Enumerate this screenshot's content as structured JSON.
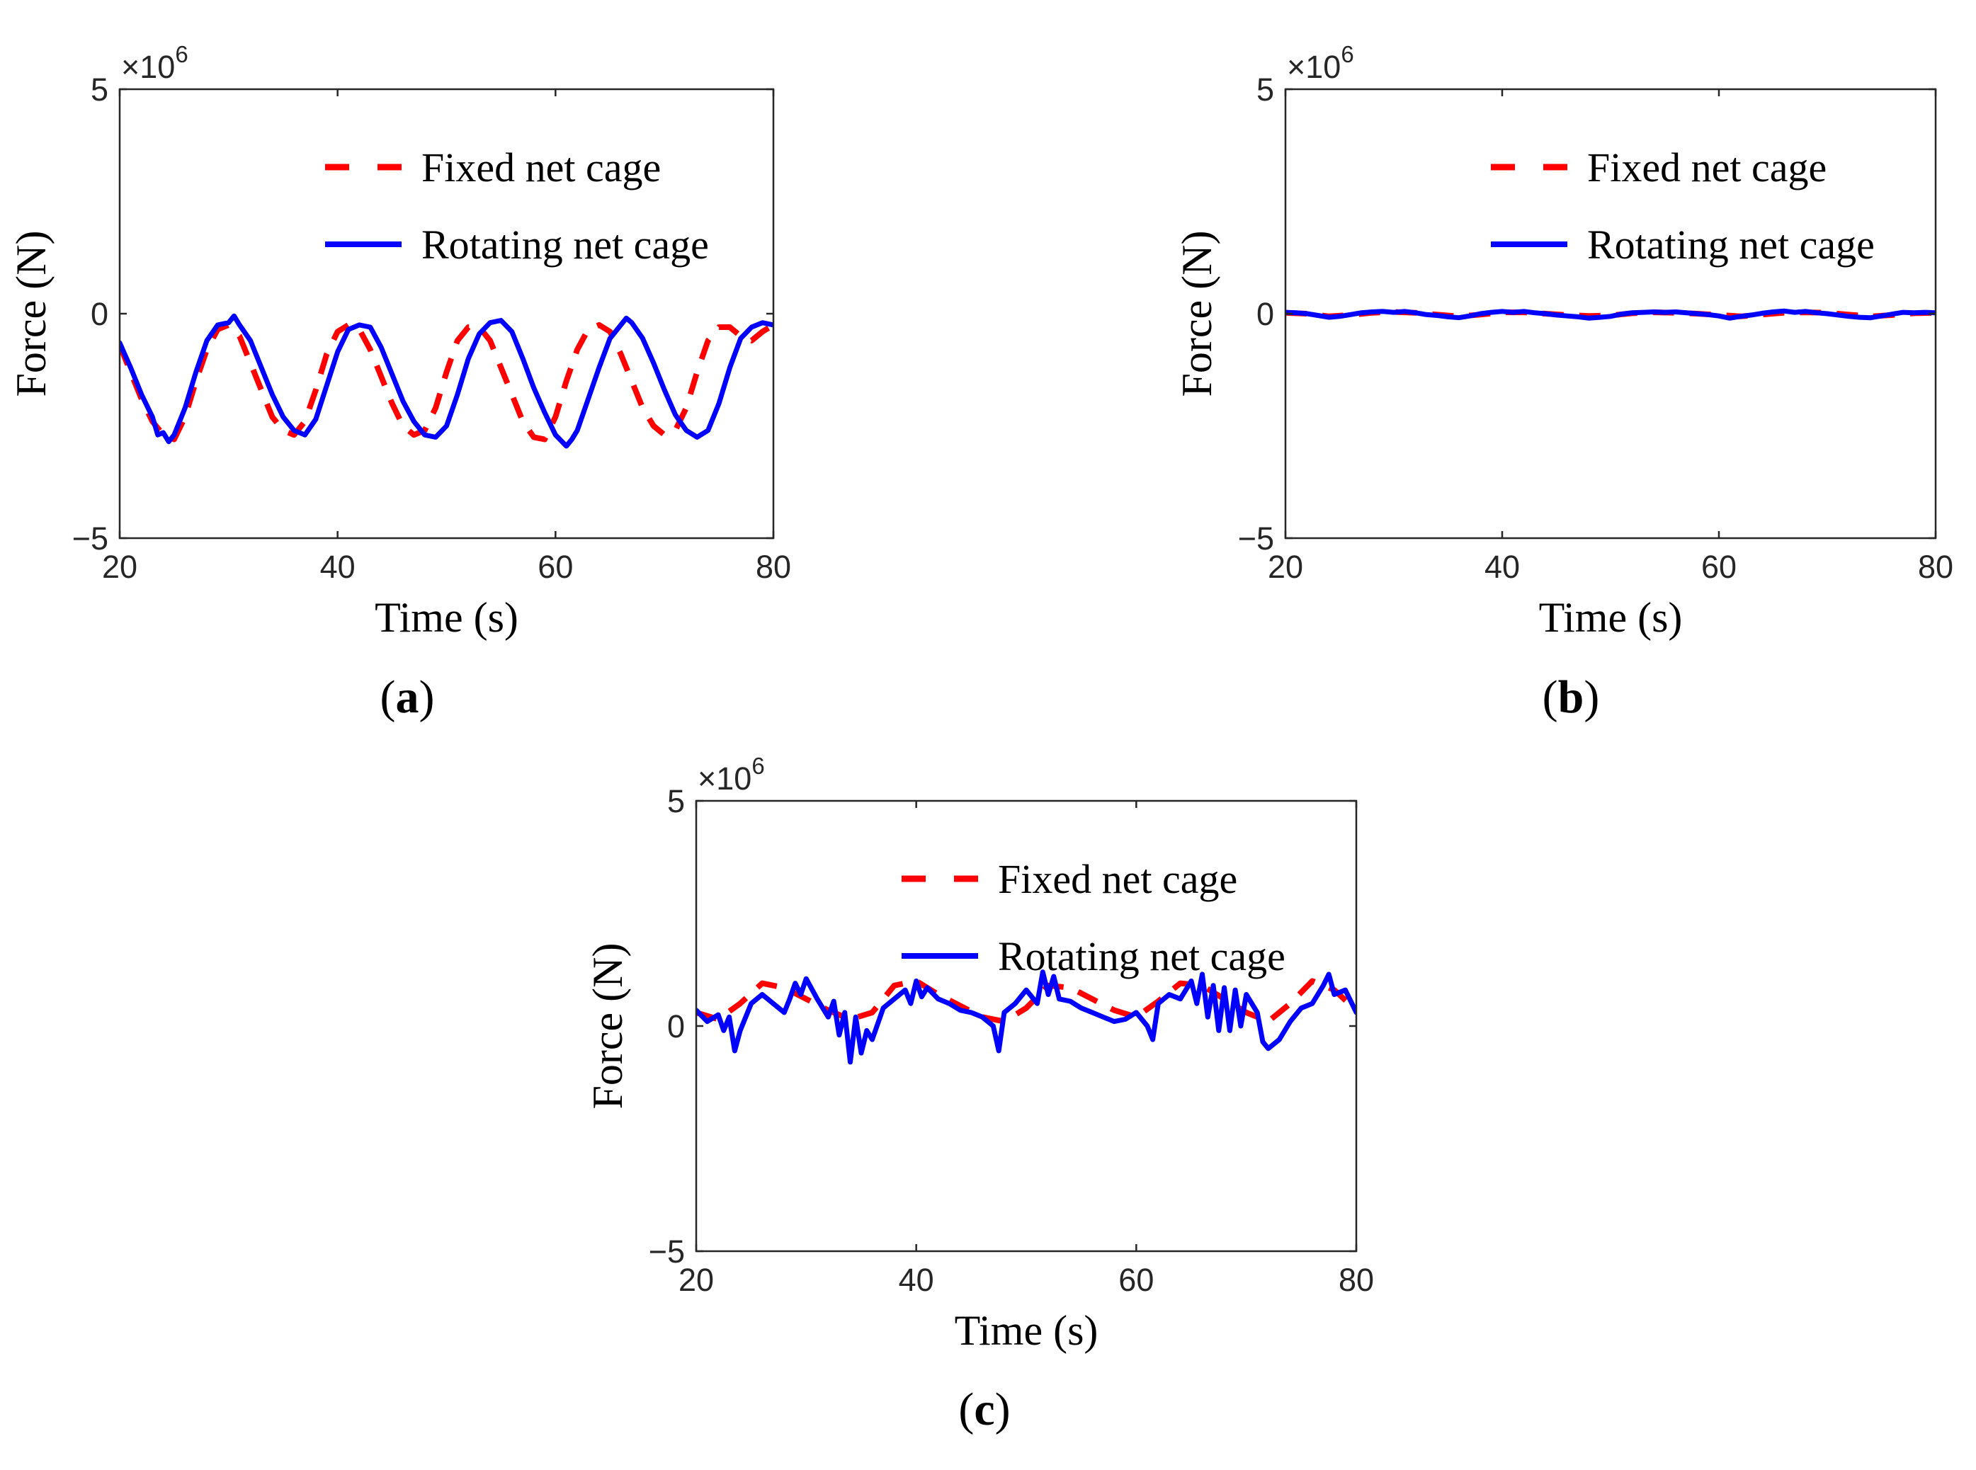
{
  "chart_data": [
    {
      "id": "a",
      "type": "line",
      "caption_letter": "a",
      "caption_left": "(",
      "caption_right": ")",
      "xlabel": "Time (s)",
      "ylabel": "Force (N)",
      "multiplier": "×10",
      "multiplier_exp": "6",
      "xlim": [
        20,
        80
      ],
      "ylim": [
        -5,
        5
      ],
      "xticks": [
        20,
        40,
        60,
        80
      ],
      "yticks": [
        -5,
        0,
        5
      ],
      "ytick_labels": [
        "−5",
        "0",
        "5"
      ],
      "grid": false,
      "legend_position": "top-right",
      "series": [
        {
          "name": "Fixed net cage",
          "color": "#ff0000",
          "style": "dashed",
          "x": [
            20,
            21,
            22,
            23,
            24,
            25,
            26,
            27,
            28,
            29,
            30,
            31,
            32,
            33,
            34,
            35,
            36,
            37,
            38,
            39,
            40,
            41,
            42,
            43,
            44,
            45,
            46,
            47,
            48,
            49,
            50,
            51,
            52,
            53,
            54,
            55,
            56,
            57,
            58,
            59,
            60,
            61,
            62,
            63,
            64,
            65,
            66,
            67,
            68,
            69,
            70,
            71,
            72,
            73,
            74,
            75,
            76,
            77,
            78,
            79,
            80
          ],
          "y": [
            -0.7,
            -1.3,
            -1.9,
            -2.4,
            -2.7,
            -2.8,
            -2.3,
            -1.5,
            -0.8,
            -0.35,
            -0.25,
            -0.5,
            -1.1,
            -1.7,
            -2.3,
            -2.6,
            -2.7,
            -2.4,
            -1.7,
            -0.9,
            -0.4,
            -0.25,
            -0.35,
            -0.8,
            -1.4,
            -2.0,
            -2.5,
            -2.7,
            -2.6,
            -2.1,
            -1.3,
            -0.6,
            -0.3,
            -0.3,
            -0.6,
            -1.2,
            -1.8,
            -2.4,
            -2.75,
            -2.8,
            -2.3,
            -1.5,
            -0.8,
            -0.35,
            -0.25,
            -0.4,
            -0.9,
            -1.5,
            -2.1,
            -2.5,
            -2.7,
            -2.6,
            -2.1,
            -1.3,
            -0.6,
            -0.3,
            -0.3,
            -0.5,
            -0.6,
            -0.4,
            -0.25
          ]
        },
        {
          "name": "Rotating net cage",
          "color": "#0000ff",
          "style": "solid",
          "x": [
            20,
            21,
            22,
            23,
            23.5,
            24,
            24.5,
            25,
            26,
            27,
            28,
            29,
            30,
            30.5,
            31,
            32,
            33,
            34,
            35,
            36,
            37,
            38,
            39,
            40,
            41,
            42,
            43,
            44,
            45,
            46,
            47,
            48,
            49,
            50,
            51,
            52,
            53,
            54,
            55,
            56,
            57,
            58,
            59,
            60,
            61,
            61.5,
            62,
            63,
            64,
            65,
            66,
            66.5,
            67,
            68,
            69,
            70,
            71,
            72,
            73,
            74,
            75,
            76,
            77,
            78,
            79,
            80
          ],
          "y": [
            -0.65,
            -1.2,
            -1.8,
            -2.3,
            -2.7,
            -2.65,
            -2.85,
            -2.7,
            -2.1,
            -1.3,
            -0.6,
            -0.25,
            -0.2,
            -0.05,
            -0.25,
            -0.6,
            -1.2,
            -1.8,
            -2.3,
            -2.6,
            -2.7,
            -2.35,
            -1.6,
            -0.85,
            -0.35,
            -0.25,
            -0.3,
            -0.75,
            -1.35,
            -1.95,
            -2.4,
            -2.7,
            -2.75,
            -2.5,
            -1.8,
            -1.0,
            -0.45,
            -0.2,
            -0.15,
            -0.4,
            -1.0,
            -1.65,
            -2.2,
            -2.7,
            -2.95,
            -2.8,
            -2.6,
            -1.9,
            -1.2,
            -0.55,
            -0.25,
            -0.1,
            -0.2,
            -0.55,
            -1.1,
            -1.7,
            -2.25,
            -2.6,
            -2.75,
            -2.6,
            -2.0,
            -1.2,
            -0.55,
            -0.3,
            -0.2,
            -0.25
          ]
        }
      ]
    },
    {
      "id": "b",
      "type": "line",
      "caption_letter": "b",
      "caption_left": "(",
      "caption_right": ")",
      "xlabel": "Time (s)",
      "ylabel": "Force (N)",
      "multiplier": "×10",
      "multiplier_exp": "6",
      "xlim": [
        20,
        80
      ],
      "ylim": [
        -5,
        5
      ],
      "xticks": [
        20,
        40,
        60,
        80
      ],
      "yticks": [
        -5,
        0,
        5
      ],
      "ytick_labels": [
        "−5",
        "0",
        "5"
      ],
      "grid": false,
      "legend_position": "top-right",
      "series": [
        {
          "name": "Fixed net cage",
          "color": "#ff0000",
          "style": "dashed",
          "x": [
            20,
            22,
            24,
            26,
            28,
            30,
            32,
            34,
            36,
            38,
            40,
            42,
            44,
            46,
            48,
            50,
            52,
            54,
            56,
            58,
            60,
            62,
            64,
            66,
            68,
            70,
            72,
            74,
            76,
            78,
            80
          ],
          "y": [
            0.02,
            0.0,
            -0.06,
            -0.03,
            0.02,
            0.04,
            0.02,
            -0.02,
            -0.06,
            -0.02,
            0.03,
            0.03,
            0.0,
            -0.03,
            -0.05,
            -0.04,
            0.01,
            0.03,
            0.02,
            0.0,
            -0.03,
            -0.06,
            -0.02,
            0.02,
            0.03,
            0.02,
            -0.02,
            -0.06,
            -0.03,
            0.01,
            0.02
          ]
        },
        {
          "name": "Rotating net cage",
          "color": "#0000ff",
          "style": "solid",
          "x": [
            20,
            21,
            22,
            23,
            24,
            25,
            26,
            27,
            28,
            29,
            30,
            31,
            32,
            33,
            34,
            35,
            36,
            37,
            38,
            39,
            40,
            41,
            42,
            43,
            44,
            45,
            46,
            47,
            48,
            49,
            50,
            51,
            52,
            53,
            54,
            55,
            56,
            57,
            58,
            59,
            60,
            61,
            62,
            63,
            64,
            65,
            66,
            67,
            68,
            69,
            70,
            71,
            72,
            73,
            74,
            75,
            76,
            77,
            78,
            79,
            80
          ],
          "y": [
            0.03,
            0.02,
            0.0,
            -0.04,
            -0.08,
            -0.06,
            -0.02,
            0.02,
            0.04,
            0.05,
            0.03,
            0.05,
            0.02,
            -0.02,
            -0.04,
            -0.07,
            -0.09,
            -0.05,
            0.0,
            0.03,
            0.05,
            0.03,
            0.05,
            0.02,
            0.0,
            -0.03,
            -0.05,
            -0.07,
            -0.1,
            -0.08,
            -0.06,
            -0.01,
            0.02,
            0.03,
            0.04,
            0.03,
            0.04,
            0.02,
            0.0,
            -0.02,
            -0.05,
            -0.1,
            -0.06,
            -0.03,
            0.01,
            0.04,
            0.06,
            0.03,
            0.05,
            0.02,
            0.0,
            -0.03,
            -0.06,
            -0.08,
            -0.09,
            -0.05,
            -0.01,
            0.03,
            0.02,
            0.03,
            0.02
          ]
        }
      ]
    },
    {
      "id": "c",
      "type": "line",
      "caption_letter": "c",
      "caption_left": "(",
      "caption_right": ")",
      "xlabel": "Time (s)",
      "ylabel": "Force (N)",
      "multiplier": "×10",
      "multiplier_exp": "6",
      "xlim": [
        20,
        80
      ],
      "ylim": [
        -5,
        5
      ],
      "xticks": [
        20,
        40,
        60,
        80
      ],
      "yticks": [
        -5,
        0,
        5
      ],
      "ytick_labels": [
        "−5",
        "0",
        "5"
      ],
      "grid": false,
      "legend_position": "top-right",
      "series": [
        {
          "name": "Fixed net cage",
          "color": "#ff0000",
          "style": "dashed",
          "x": [
            20,
            22,
            24,
            26,
            28,
            30,
            32,
            34,
            36,
            38,
            40,
            42,
            44,
            46,
            48,
            50,
            52,
            54,
            56,
            58,
            60,
            62,
            64,
            66,
            68,
            70,
            72,
            74,
            76,
            78,
            80
          ],
          "y": [
            0.3,
            0.15,
            0.5,
            0.95,
            0.85,
            0.6,
            0.35,
            0.15,
            0.3,
            0.9,
            1.0,
            0.7,
            0.45,
            0.2,
            0.1,
            0.4,
            0.9,
            0.85,
            0.6,
            0.35,
            0.2,
            0.55,
            0.95,
            0.9,
            0.6,
            0.3,
            0.1,
            0.5,
            1.0,
            0.8,
            0.35
          ]
        },
        {
          "name": "Rotating net cage",
          "color": "#0000ff",
          "style": "solid",
          "x": [
            20,
            21,
            22,
            22.5,
            23,
            23.5,
            24,
            25,
            26,
            27,
            28,
            28.5,
            29,
            29.5,
            30,
            31,
            32,
            32.5,
            33,
            33.5,
            34,
            34.5,
            35,
            35.5,
            36,
            37,
            38,
            39,
            39.5,
            40,
            40.5,
            41,
            42,
            43,
            44,
            45,
            46,
            47,
            47.5,
            48,
            49,
            50,
            51,
            51.5,
            52,
            52.5,
            53,
            54,
            55,
            56,
            57,
            58,
            59,
            60,
            61,
            61.5,
            62,
            63,
            64,
            65,
            65.5,
            66,
            66.5,
            67,
            67.5,
            68,
            68.5,
            69,
            69.5,
            70,
            71,
            71.5,
            72,
            73,
            74,
            75,
            76,
            77,
            77.5,
            78,
            79,
            80
          ],
          "y": [
            0.35,
            0.1,
            0.25,
            -0.1,
            0.2,
            -0.55,
            -0.1,
            0.5,
            0.7,
            0.5,
            0.3,
            0.6,
            0.95,
            0.7,
            1.05,
            0.6,
            0.2,
            0.55,
            -0.2,
            0.3,
            -0.8,
            0.2,
            -0.6,
            -0.1,
            -0.3,
            0.4,
            0.6,
            0.8,
            0.5,
            1.0,
            0.65,
            0.85,
            0.6,
            0.5,
            0.35,
            0.3,
            0.2,
            0.0,
            -0.55,
            0.3,
            0.5,
            0.8,
            0.5,
            1.2,
            0.7,
            1.1,
            0.6,
            0.55,
            0.4,
            0.3,
            0.2,
            0.1,
            0.15,
            0.3,
            0.0,
            -0.3,
            0.5,
            0.7,
            0.6,
            1.0,
            0.5,
            1.15,
            0.2,
            0.9,
            -0.1,
            0.85,
            -0.1,
            0.8,
            0.0,
            0.7,
            0.3,
            -0.35,
            -0.5,
            -0.3,
            0.1,
            0.4,
            0.5,
            0.9,
            1.15,
            0.7,
            0.8,
            0.3
          ]
        }
      ]
    }
  ]
}
